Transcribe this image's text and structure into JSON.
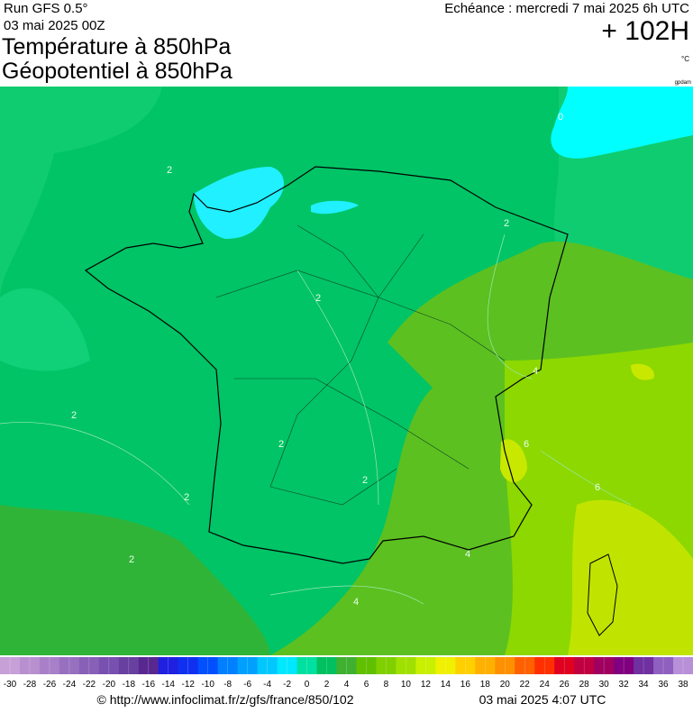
{
  "header": {
    "run": "Run GFS 0.5°",
    "run_date": "03 mai 2025 00Z",
    "title1": "Température à 850hPa",
    "title2": "Géopotentiel à 850hPa",
    "valid": "Echéance : mercredi 7 mai 2025 6h UTC",
    "lead": "+ 102H",
    "unit": "°C",
    "contour_unit": "gpdam"
  },
  "map": {
    "contour_labels": [
      0,
      2,
      2,
      2,
      2,
      2,
      2,
      2,
      2,
      4,
      4,
      4,
      6,
      6
    ]
  },
  "colorbar": {
    "values": [
      -30,
      -28,
      -26,
      -24,
      -22,
      -20,
      -18,
      -16,
      -14,
      -12,
      -10,
      -8,
      -6,
      -4,
      -2,
      0,
      2,
      4,
      6,
      8,
      10,
      12,
      14,
      16,
      18,
      20,
      22,
      24,
      26,
      28,
      30,
      32,
      34,
      36,
      38
    ],
    "colors": [
      "#c8a0d8",
      "#b890d0",
      "#a880c8",
      "#9870c0",
      "#8860b8",
      "#7850b0",
      "#6840a0",
      "#582890",
      "#2020e0",
      "#1030f0",
      "#0050ff",
      "#0080ff",
      "#00a0ff",
      "#00c8ff",
      "#00e8ff",
      "#00e0a0",
      "#00c060",
      "#40b030",
      "#60c000",
      "#80d000",
      "#a0e000",
      "#c8f000",
      "#f0f000",
      "#ffd000",
      "#ffb000",
      "#ff9000",
      "#ff6000",
      "#ff3000",
      "#e00020",
      "#c00040",
      "#a00060",
      "#800080",
      "#7030a0",
      "#9060c0",
      "#b890d8"
    ]
  },
  "footer": {
    "source": "© http://www.infoclimat.fr/z/gfs/france/850/102",
    "generated": "03 mai 2025  4:07 UTC"
  }
}
